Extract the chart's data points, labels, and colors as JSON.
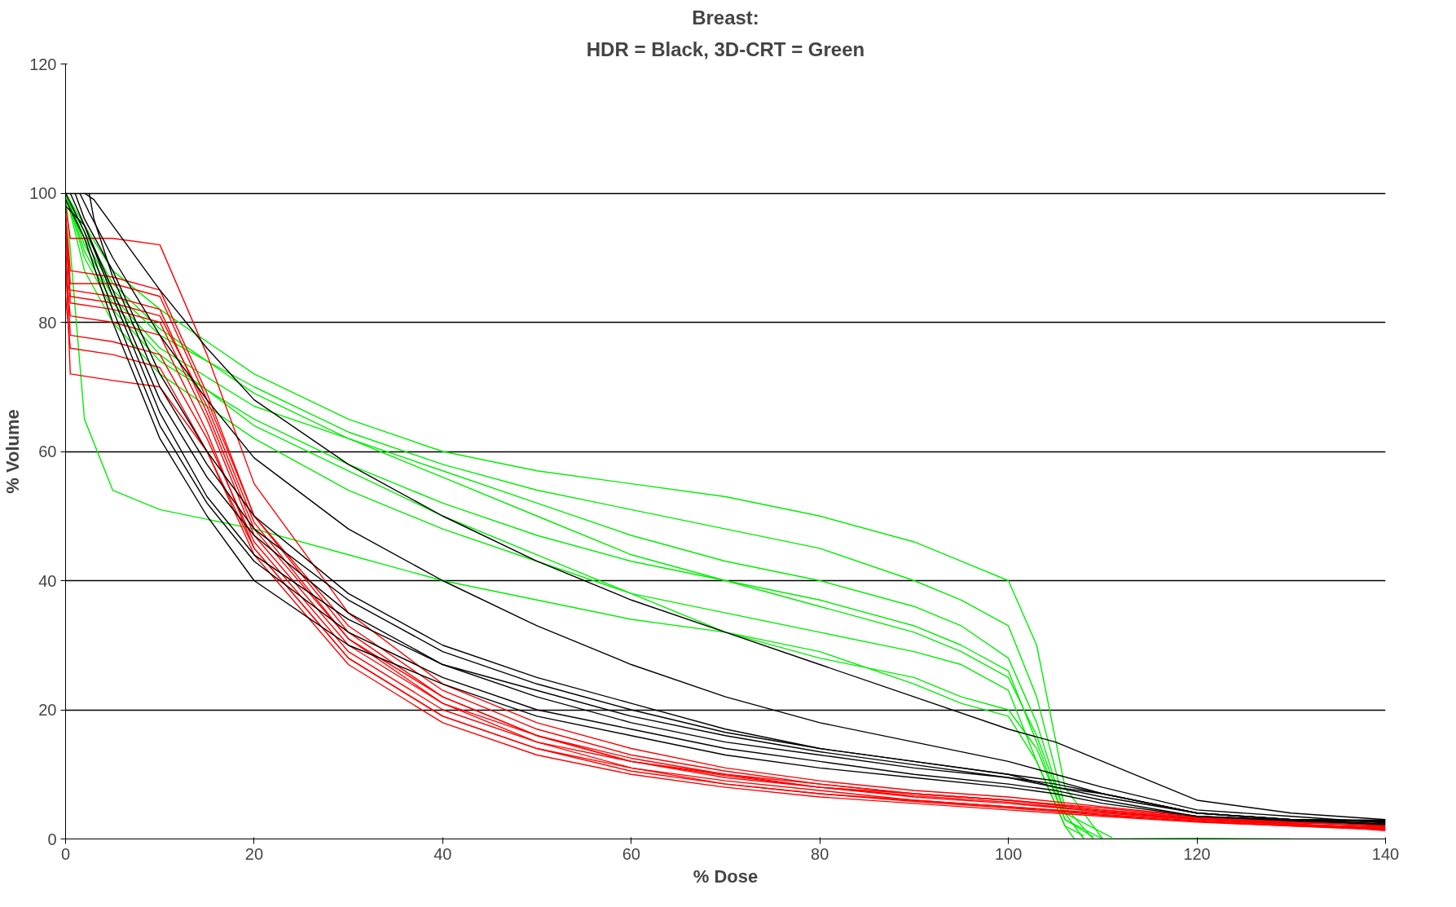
{
  "chart_data": {
    "type": "line",
    "title": "Breast:",
    "subtitle": "HDR = Black, 3D-CRT = Green",
    "xlabel": "% Dose",
    "ylabel": "% Volume",
    "xlim": [
      0,
      140
    ],
    "ylim": [
      0,
      120
    ],
    "xticks": [
      0,
      20,
      40,
      60,
      80,
      100,
      120,
      140
    ],
    "yticks": [
      0,
      20,
      40,
      60,
      80,
      100,
      120
    ],
    "grid": "y",
    "marker": "none",
    "line_style": "solid",
    "series": [
      {
        "color": "#000000",
        "x": [
          2,
          3,
          5,
          10,
          15,
          20,
          30,
          40,
          50,
          60,
          70,
          80,
          90,
          100,
          105,
          110,
          120,
          130,
          140
        ],
        "values": [
          100,
          99,
          95,
          85,
          76,
          68,
          58,
          50,
          43,
          37,
          32,
          27,
          22,
          17,
          15,
          12,
          6,
          4,
          3
        ]
      },
      {
        "color": "#000000",
        "x": [
          1.5,
          2.5,
          5,
          10,
          15,
          20,
          30,
          40,
          50,
          60,
          70,
          80,
          90,
          100,
          105,
          110,
          120,
          130,
          140
        ],
        "values": [
          100,
          97,
          90,
          78,
          68,
          59,
          48,
          40,
          33,
          27,
          22,
          18,
          15,
          12,
          10,
          8,
          4.5,
          3.5,
          2.5
        ]
      },
      {
        "color": "#000000",
        "x": [
          1,
          2,
          5,
          10,
          15,
          20,
          30,
          40,
          50,
          60,
          70,
          80,
          90,
          100,
          105,
          110,
          120,
          130,
          140
        ],
        "values": [
          100,
          96,
          88,
          72,
          60,
          50,
          38,
          30,
          25,
          21,
          17,
          14,
          12,
          10,
          8,
          7,
          4,
          3,
          2.6
        ]
      },
      {
        "color": "#000000",
        "x": [
          0.5,
          2,
          5,
          10,
          15,
          20,
          30,
          40,
          50,
          60,
          70,
          80,
          90,
          100,
          105,
          110,
          120,
          130,
          140
        ],
        "values": [
          100,
          95,
          85,
          68,
          56,
          47,
          35,
          27,
          22,
          18,
          15,
          13,
          11,
          9.5,
          8,
          6.5,
          4,
          3,
          2.9
        ]
      },
      {
        "color": "#000000",
        "x": [
          0,
          2,
          5,
          10,
          15,
          20,
          30,
          40,
          50,
          60,
          70,
          80,
          90,
          100,
          105,
          110,
          120,
          130,
          140
        ],
        "values": [
          100,
          94,
          82,
          64,
          52,
          43,
          32,
          25,
          20,
          17,
          14,
          12,
          10,
          8.5,
          7.5,
          6,
          3.5,
          3,
          2.3
        ]
      },
      {
        "color": "#000000",
        "x": [
          0,
          2,
          5,
          10,
          15,
          20,
          30,
          40,
          50,
          60,
          70,
          80,
          90,
          100,
          105,
          110,
          120,
          130,
          140
        ],
        "values": [
          99,
          93,
          80,
          62,
          50,
          40,
          30,
          24,
          19,
          16,
          13,
          11,
          9.5,
          8,
          7,
          5.5,
          3.5,
          2.8,
          2.2
        ]
      },
      {
        "color": "#000000",
        "x": [
          0,
          2,
          5,
          10,
          15,
          20,
          30,
          40,
          50,
          60,
          70,
          80,
          90,
          100,
          105,
          110,
          120,
          130,
          140
        ],
        "values": [
          98,
          95,
          84,
          66,
          53,
          44,
          34,
          27,
          23,
          19,
          16,
          13.5,
          11.5,
          9.5,
          8.5,
          7,
          4,
          3,
          2.7
        ]
      },
      {
        "color": "#000000",
        "x": [
          2.5,
          3,
          5,
          10,
          15,
          20,
          30,
          40,
          50,
          60,
          70,
          80,
          90,
          100,
          105,
          110,
          120,
          130,
          140
        ],
        "values": [
          100,
          96,
          87,
          70,
          58,
          48,
          37,
          29,
          24,
          20,
          16.5,
          14,
          12,
          10,
          9,
          7,
          4,
          3,
          2.8
        ]
      },
      {
        "color": "#ff0000",
        "x": [
          0,
          0.5,
          5,
          10,
          15,
          20,
          30,
          40,
          50,
          60,
          70,
          80,
          90,
          100,
          110,
          120,
          130,
          140
        ],
        "values": [
          98,
          93,
          93,
          92,
          75,
          55,
          35,
          24,
          18,
          14,
          11,
          9,
          7.5,
          6.5,
          5,
          3.5,
          2.8,
          2.4
        ]
      },
      {
        "color": "#ff0000",
        "x": [
          0,
          0.5,
          5,
          10,
          15,
          20,
          30,
          40,
          50,
          60,
          70,
          80,
          90,
          100,
          110,
          120,
          130,
          140
        ],
        "values": [
          96,
          86,
          86,
          84,
          68,
          50,
          32,
          22,
          16,
          12,
          10,
          8,
          7,
          6,
          4.5,
          3.2,
          2.5,
          2.1
        ]
      },
      {
        "color": "#ff0000",
        "x": [
          0,
          0.5,
          5,
          10,
          15,
          20,
          30,
          40,
          50,
          60,
          70,
          80,
          90,
          100,
          110,
          120,
          130,
          140
        ],
        "values": [
          94,
          83,
          82,
          80,
          65,
          47,
          30,
          21,
          15,
          12,
          9.5,
          8,
          6.5,
          5.5,
          4.2,
          3,
          2.3,
          1.8
        ]
      },
      {
        "color": "#ff0000",
        "x": [
          0,
          0.5,
          5,
          10,
          15,
          20,
          30,
          40,
          50,
          60,
          70,
          80,
          90,
          100,
          110,
          120,
          130,
          140
        ],
        "values": [
          92,
          78,
          77,
          75,
          62,
          46,
          29,
          20,
          15,
          11,
          9,
          7.5,
          6,
          5,
          4,
          3,
          2.2,
          1.7
        ]
      },
      {
        "color": "#ff0000",
        "x": [
          0,
          0.5,
          5,
          10,
          15,
          20,
          30,
          40,
          50,
          60,
          70,
          80,
          90,
          100,
          110,
          120,
          130,
          140
        ],
        "values": [
          90,
          72,
          71,
          70,
          60,
          45,
          28,
          19,
          14,
          11,
          8.5,
          7,
          6,
          5,
          3.8,
          2.8,
          2.1,
          1.6
        ]
      },
      {
        "color": "#ff0000",
        "x": [
          0,
          0.5,
          5,
          10,
          15,
          20,
          30,
          40,
          50,
          60,
          70,
          80,
          90,
          100,
          110,
          120,
          130,
          140
        ],
        "values": [
          88,
          81,
          80,
          78,
          63,
          45,
          28,
          19,
          14,
          10.5,
          8.5,
          7,
          5.8,
          4.8,
          3.7,
          2.7,
          2,
          1.5
        ]
      },
      {
        "color": "#ff0000",
        "x": [
          0,
          0.5,
          5,
          10,
          15,
          20,
          30,
          40,
          50,
          60,
          70,
          80,
          90,
          100,
          110,
          120,
          130,
          140
        ],
        "values": [
          86,
          85,
          84,
          82,
          66,
          48,
          31,
          21,
          16,
          12.5,
          10,
          8.5,
          7,
          6,
          4.5,
          3.3,
          2.6,
          2
        ]
      },
      {
        "color": "#ff0000",
        "x": [
          0,
          0.5,
          5,
          10,
          15,
          20,
          30,
          40,
          50,
          60,
          70,
          80,
          90,
          100,
          110,
          120,
          130,
          140
        ],
        "values": [
          84,
          76,
          75,
          73,
          60,
          44,
          27,
          18,
          13,
          10,
          8,
          6.5,
          5.5,
          4.5,
          3.5,
          2.6,
          2,
          1.4
        ]
      },
      {
        "color": "#ff0000",
        "x": [
          0,
          0.5,
          5,
          10,
          15,
          20,
          30,
          40,
          50,
          60,
          70,
          80,
          90,
          100,
          110,
          120,
          130,
          140
        ],
        "values": [
          97,
          88,
          87,
          85,
          69,
          50,
          33,
          23,
          17,
          13,
          10.5,
          8.5,
          7,
          6,
          4.8,
          3.4,
          2.7,
          1.9
        ]
      },
      {
        "color": "#ff0000",
        "x": [
          0,
          0.5,
          5,
          10,
          15,
          20,
          30,
          40,
          50,
          60,
          70,
          80,
          90,
          100,
          110,
          120,
          130,
          140
        ],
        "values": [
          95,
          84,
          83,
          81,
          67,
          49,
          31,
          22,
          16,
          12,
          9.8,
          8,
          6.7,
          5.7,
          4.3,
          3.1,
          2.4,
          1.3
        ]
      },
      {
        "color": "#00ee00",
        "x": [
          0,
          2,
          5,
          10,
          20,
          30,
          40,
          50,
          60,
          70,
          80,
          90,
          95,
          100,
          103,
          106,
          110,
          120,
          130
        ],
        "values": [
          100,
          95,
          88,
          82,
          72,
          65,
          60,
          57,
          55,
          53,
          50,
          46,
          43,
          40,
          30,
          8,
          0,
          0.1,
          0
        ]
      },
      {
        "color": "#00ee00",
        "x": [
          0,
          2,
          5,
          10,
          20,
          30,
          40,
          50,
          60,
          70,
          80,
          90,
          95,
          100,
          103,
          106,
          109
        ],
        "values": [
          100,
          93,
          85,
          78,
          70,
          63,
          58,
          54,
          51,
          48,
          45,
          40,
          37,
          33,
          22,
          5,
          0
        ]
      },
      {
        "color": "#00ee00",
        "x": [
          0,
          2,
          5,
          10,
          20,
          30,
          40,
          50,
          60,
          70,
          80,
          90,
          95,
          100,
          103,
          106,
          108
        ],
        "values": [
          100,
          92,
          84,
          76,
          67,
          62,
          57,
          52,
          47,
          43,
          40,
          36,
          33,
          28,
          18,
          4,
          0
        ]
      },
      {
        "color": "#00ee00",
        "x": [
          0,
          2,
          5,
          10,
          20,
          30,
          40,
          50,
          60,
          70,
          80,
          90,
          95,
          100,
          103,
          106,
          110
        ],
        "values": [
          100,
          90,
          82,
          74,
          65,
          58,
          52,
          47,
          43,
          40,
          37,
          33,
          30,
          26,
          15,
          3,
          0
        ]
      },
      {
        "color": "#00ee00",
        "x": [
          0,
          2,
          5,
          10,
          20,
          30,
          40,
          50,
          60,
          70,
          80,
          90,
          95,
          100,
          103,
          106,
          107
        ],
        "values": [
          100,
          88,
          80,
          72,
          62,
          54,
          48,
          43,
          38,
          35,
          32,
          29,
          27,
          23,
          12,
          2,
          0
        ]
      },
      {
        "color": "#00ee00",
        "x": [
          0,
          2,
          5,
          10,
          20,
          30,
          40,
          50,
          60,
          70,
          80,
          90,
          95,
          100,
          103,
          106,
          108
        ],
        "values": [
          100,
          65,
          54,
          51,
          48,
          44,
          40,
          37,
          34,
          32,
          29,
          24,
          21,
          19,
          12,
          2,
          0.5
        ]
      },
      {
        "color": "#00ee00",
        "x": [
          0,
          2,
          5,
          10,
          20,
          30,
          40,
          50,
          60,
          70,
          80,
          90,
          95,
          100,
          103,
          106,
          109
        ],
        "values": [
          100,
          91,
          83,
          75,
          64,
          57,
          50,
          44,
          38,
          32,
          28,
          25,
          22,
          20,
          14,
          3,
          0.3
        ]
      },
      {
        "color": "#00ee00",
        "x": [
          0,
          2,
          5,
          10,
          20,
          30,
          40,
          50,
          60,
          70,
          80,
          90,
          95,
          100,
          103,
          106,
          111
        ],
        "values": [
          100,
          94,
          86,
          79,
          69,
          62,
          56,
          50,
          44,
          40,
          36,
          32,
          29,
          25,
          16,
          4,
          0.2
        ]
      }
    ]
  }
}
